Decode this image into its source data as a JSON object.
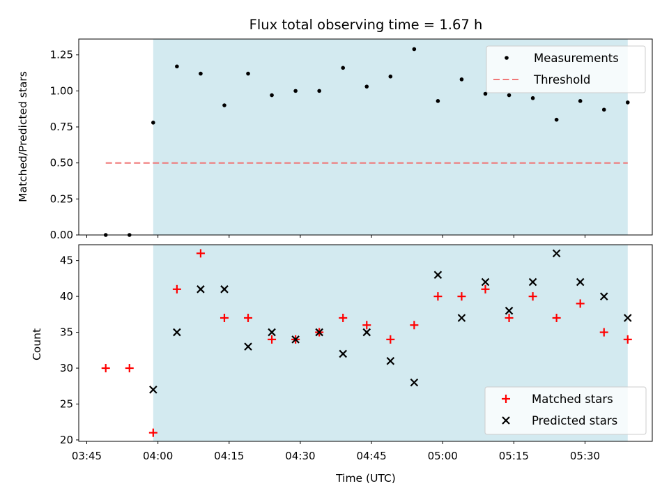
{
  "chart_data": [
    {
      "type": "scatter",
      "title": "Flux total observing time = 1.67 h",
      "ylabel": "Matched/Predicted stars",
      "xlabel": "",
      "ylim": [
        0,
        1.36
      ],
      "yticks": [
        "0.00",
        "0.25",
        "0.50",
        "0.75",
        "1.00",
        "1.25"
      ],
      "legend_position": "top-right",
      "observing_window": {
        "start": "03:59",
        "end": "05:39",
        "color": "#d3eaf0"
      },
      "series": [
        {
          "name": "Measurements",
          "marker": "dot",
          "color": "#000000",
          "x": [
            "03:49",
            "03:54",
            "03:59",
            "04:04",
            "04:09",
            "04:14",
            "04:19",
            "04:24",
            "04:29",
            "04:34",
            "04:39",
            "04:44",
            "04:49",
            "04:54",
            "04:59",
            "05:04",
            "05:09",
            "05:14",
            "05:19",
            "05:24",
            "05:29",
            "05:34",
            "05:39"
          ],
          "y": [
            0.0,
            0.0,
            0.78,
            1.17,
            1.12,
            0.9,
            1.12,
            0.97,
            1.0,
            1.0,
            1.16,
            1.03,
            1.1,
            1.29,
            0.93,
            1.08,
            0.98,
            0.97,
            0.95,
            0.8,
            0.93,
            0.87,
            0.92
          ]
        },
        {
          "name": "Threshold",
          "marker": "dashed-line",
          "color": "#f07878",
          "x": [
            "03:49",
            "05:39"
          ],
          "y": [
            0.5,
            0.5
          ]
        }
      ]
    },
    {
      "type": "scatter",
      "title": "",
      "ylabel": "Count",
      "xlabel": "Time (UTC)",
      "ylim": [
        19.8,
        47.2
      ],
      "yticks": [
        "20",
        "25",
        "30",
        "35",
        "40",
        "45"
      ],
      "xticks": [
        "03:45",
        "04:00",
        "04:15",
        "04:30",
        "04:45",
        "05:00",
        "05:15",
        "05:30"
      ],
      "legend_position": "bottom-right",
      "observing_window": {
        "start": "03:59",
        "end": "05:39",
        "color": "#d3eaf0"
      },
      "series": [
        {
          "name": "Matched stars",
          "marker": "plus",
          "color": "#ff0000",
          "x": [
            "03:49",
            "03:54",
            "03:59",
            "04:04",
            "04:09",
            "04:14",
            "04:19",
            "04:24",
            "04:29",
            "04:34",
            "04:39",
            "04:44",
            "04:49",
            "04:54",
            "04:59",
            "05:04",
            "05:09",
            "05:14",
            "05:19",
            "05:24",
            "05:29",
            "05:34",
            "05:39"
          ],
          "y": [
            30,
            30,
            21,
            41,
            46,
            37,
            37,
            34,
            34,
            35,
            37,
            36,
            34,
            36,
            40,
            40,
            41,
            37,
            40,
            37,
            39,
            35,
            34
          ]
        },
        {
          "name": "Predicted stars",
          "marker": "x",
          "color": "#000000",
          "x": [
            "03:59",
            "04:04",
            "04:09",
            "04:14",
            "04:19",
            "04:24",
            "04:29",
            "04:34",
            "04:39",
            "04:44",
            "04:49",
            "04:54",
            "04:59",
            "05:04",
            "05:09",
            "05:14",
            "05:19",
            "05:24",
            "05:29",
            "05:34",
            "05:39"
          ],
          "y": [
            27,
            35,
            41,
            41,
            33,
            35,
            34,
            35,
            32,
            35,
            31,
            28,
            43,
            37,
            42,
            38,
            42,
            46,
            42,
            40,
            37
          ]
        }
      ]
    }
  ]
}
